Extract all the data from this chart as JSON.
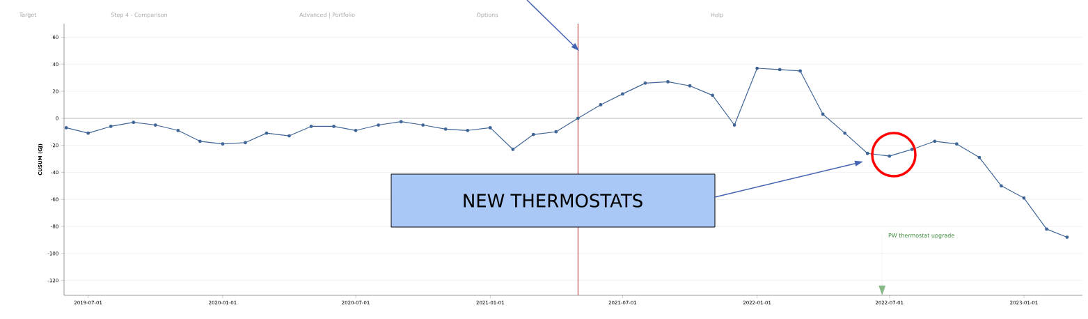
{
  "chart_data": {
    "type": "line",
    "ylabel": "CUSUM (GJ)",
    "x": [
      "2019-06-01",
      "2019-07-01",
      "2019-08-01",
      "2019-09-01",
      "2019-10-01",
      "2019-11-01",
      "2019-12-01",
      "2020-01-01",
      "2020-02-01",
      "2020-03-01",
      "2020-04-01",
      "2020-05-01",
      "2020-06-01",
      "2020-07-01",
      "2020-08-01",
      "2020-09-01",
      "2020-10-01",
      "2020-11-01",
      "2020-12-01",
      "2021-01-01",
      "2021-02-01",
      "2021-03-01",
      "2021-04-01",
      "2021-05-01",
      "2021-06-01",
      "2021-07-01",
      "2021-08-01",
      "2021-09-01",
      "2021-10-01",
      "2021-11-01",
      "2021-12-01",
      "2022-01-01",
      "2022-02-01",
      "2022-03-01",
      "2022-04-01",
      "2022-05-01",
      "2022-06-01",
      "2022-07-01",
      "2022-08-01",
      "2022-09-01",
      "2022-10-01",
      "2022-11-01",
      "2022-12-01",
      "2023-01-01",
      "2023-02-01",
      "2023-03-01"
    ],
    "series": [
      {
        "color": "#3f6596",
        "values": [
          -7,
          -11,
          -6,
          -3,
          -5,
          -9,
          -17,
          -19,
          -18,
          -11,
          -13,
          -6,
          -6,
          -9,
          -5,
          -2.5,
          -5,
          -8,
          -9,
          -7,
          -23,
          -12,
          -10,
          0,
          10,
          18,
          26,
          27,
          24,
          17,
          -5,
          37,
          36,
          35,
          3,
          -11,
          -26,
          -28,
          -23,
          -17,
          -19,
          -29,
          -50,
          -59,
          -82,
          -88
        ]
      }
    ],
    "xlim": [
      "2019-05-29",
      "2023-03-22"
    ],
    "ylim": [
      -131,
      70
    ],
    "xticks": [
      "2019-07-01",
      "2020-01-01",
      "2020-07-01",
      "2021-01-01",
      "2021-07-01",
      "2022-01-01",
      "2022-07-01",
      "2023-01-01"
    ],
    "yticks": [
      -120,
      -100,
      -80,
      -60,
      -40,
      -20,
      0,
      20,
      40,
      60
    ],
    "grid": "y",
    "marker": "circle",
    "line_style": "solid",
    "ref_lines": [
      {
        "axis": "y",
        "value": 0,
        "color": "#555555"
      },
      {
        "axis": "x",
        "value": "2021-05-01",
        "color": "#b03030"
      },
      {
        "axis": "x",
        "value": "2022-06-21",
        "label": "PW thermostat upgrade",
        "color": "#3a8a3a",
        "line_style": "dotted"
      }
    ],
    "annotations": [
      "NEW THERMOSTATS",
      "Target",
      "Step 4 - Comparison",
      "Advanced | Portfolio",
      "Options",
      "Help"
    ]
  }
}
